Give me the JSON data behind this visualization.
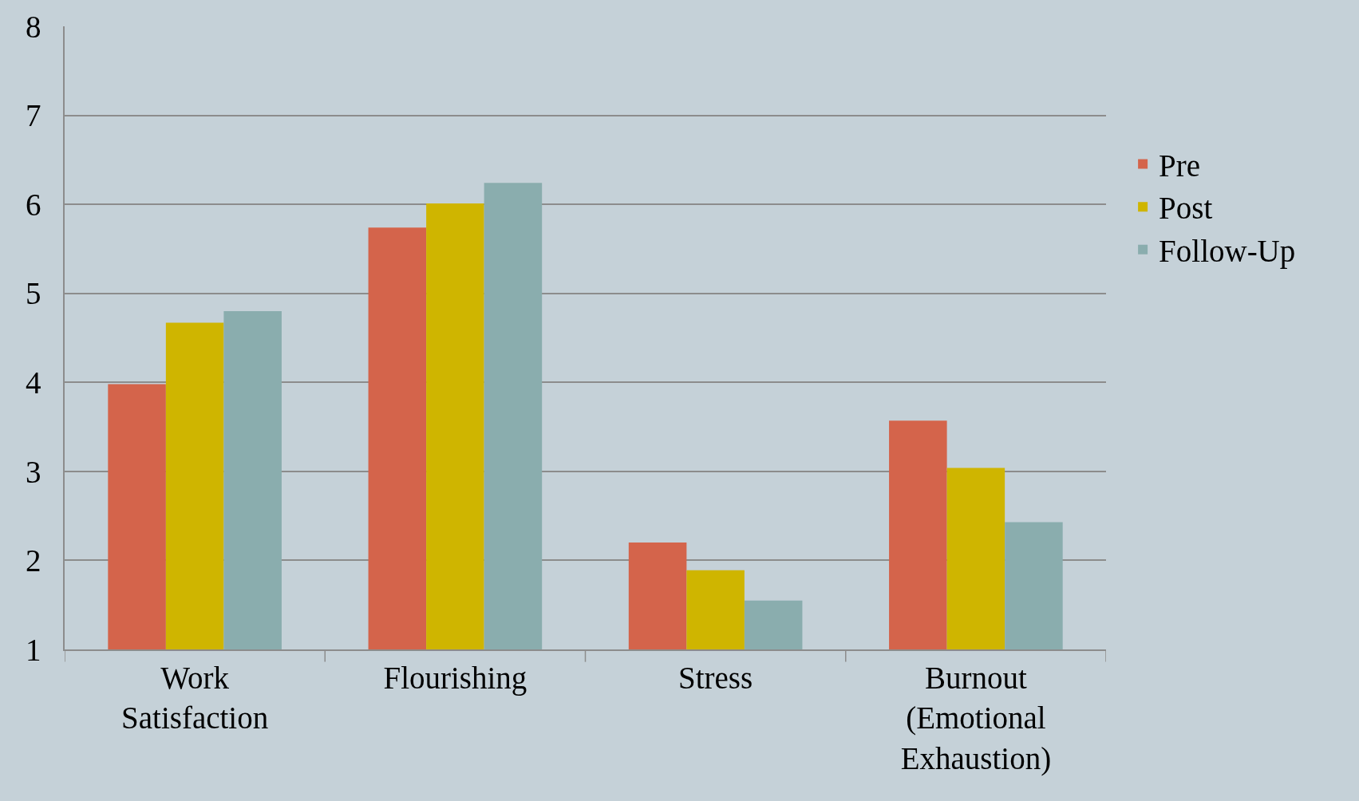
{
  "chart_data": {
    "type": "bar",
    "categories": [
      "Work Satisfaction",
      "Flourishing",
      "Stress",
      "Burnout (Emotional Exhaustion)"
    ],
    "series": [
      {
        "name": "Pre",
        "color": "#d4644b",
        "values": [
          3.98,
          5.74,
          2.2,
          3.57
        ]
      },
      {
        "name": "Post",
        "color": "#cfb500",
        "values": [
          4.67,
          6.01,
          1.89,
          3.04
        ]
      },
      {
        "name": "Follow-Up",
        "color": "#8aadae",
        "values": [
          4.8,
          6.24,
          1.55,
          2.43
        ]
      }
    ],
    "ylim": [
      1,
      8
    ],
    "yticks": [
      1,
      2,
      3,
      4,
      5,
      6,
      7,
      8
    ],
    "grid": "y",
    "legend": "right"
  }
}
